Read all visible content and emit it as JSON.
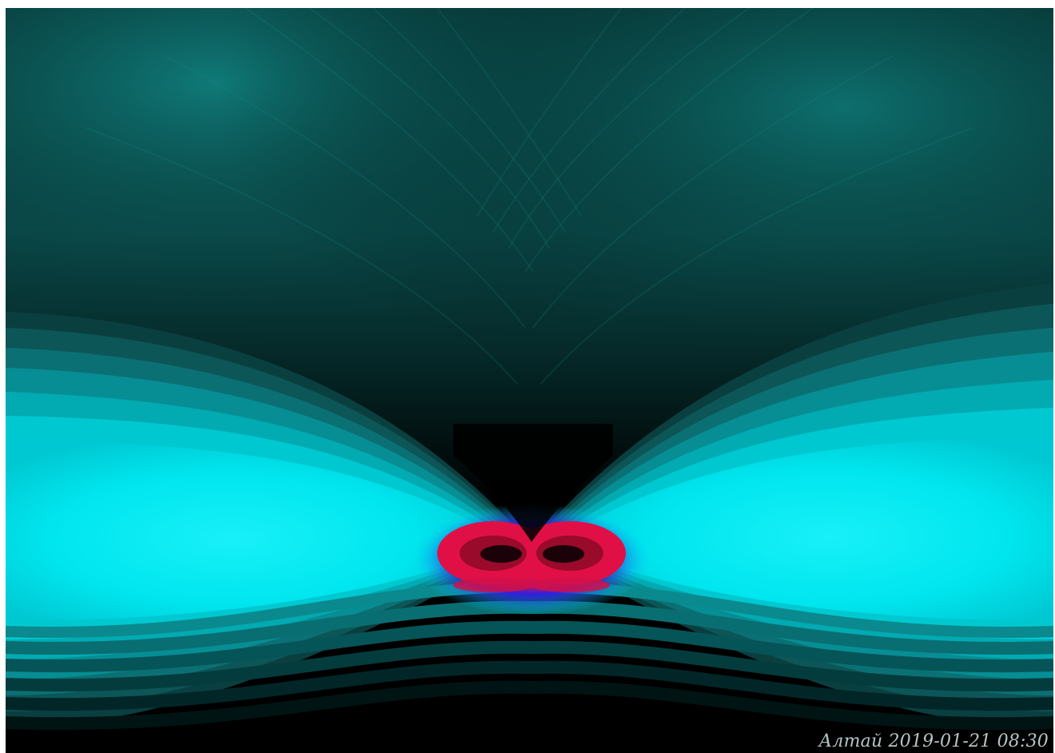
{
  "artwork": {
    "signature": "Алтай 2019-01-21 08:30",
    "palette": {
      "background": "#000000",
      "teal_dark": "#0a3a3a",
      "teal_mid": "#0f6e6e",
      "cyan_bright": "#00eaf2",
      "blue_core": "#1a20e0",
      "red_core": "#e0103a",
      "signature_color": "#b7c4c4"
    }
  }
}
